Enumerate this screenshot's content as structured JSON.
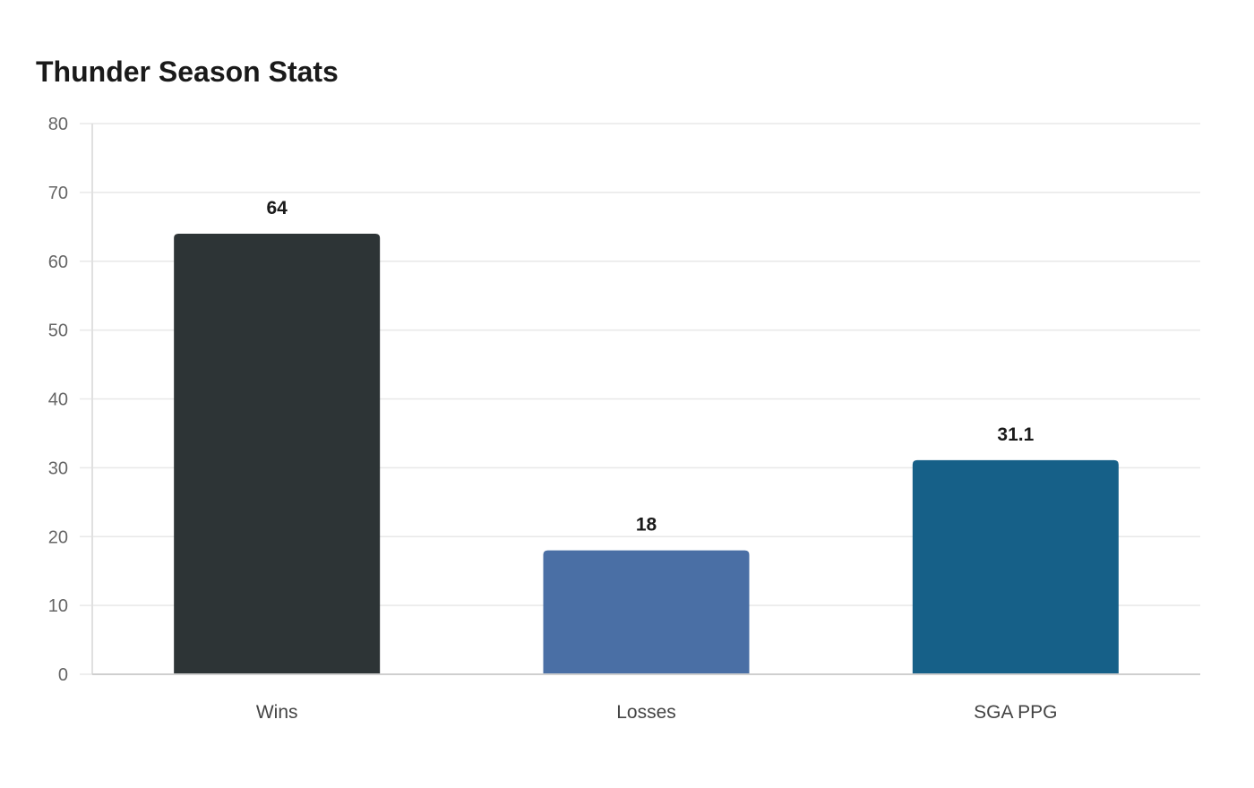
{
  "chart_data": {
    "type": "bar",
    "title": "Thunder Season Stats",
    "categories": [
      "Wins",
      "Losses",
      "SGA PPG"
    ],
    "values": [
      64,
      18,
      31.1
    ],
    "data_labels": [
      "64",
      "18",
      "31.1"
    ],
    "colors": [
      "#2d3436",
      "#4a6fa5",
      "#166088"
    ],
    "ylim": [
      0,
      80
    ],
    "yticks": [
      "0",
      "10",
      "20",
      "30",
      "40",
      "50",
      "60",
      "70",
      "80"
    ],
    "xlabel": "",
    "ylabel": "",
    "grid": true,
    "legend": "none"
  }
}
